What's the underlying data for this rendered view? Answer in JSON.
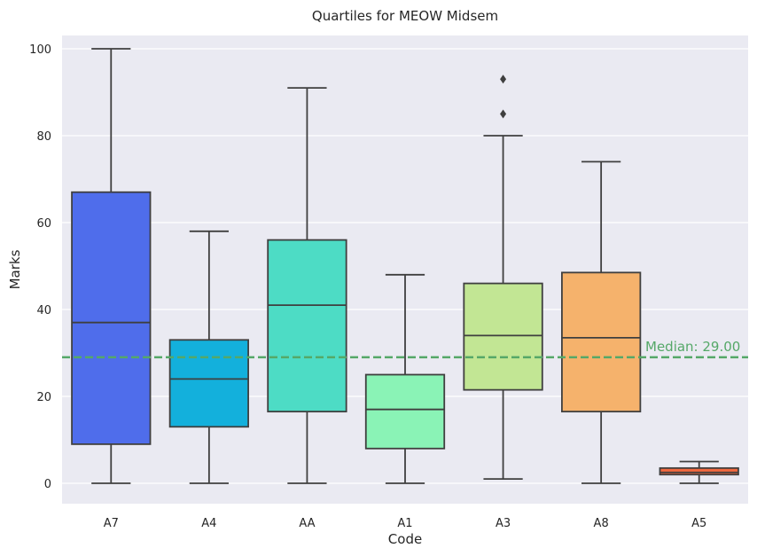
{
  "chart_data": {
    "type": "box",
    "title": "Quartiles for MEOW Midsem",
    "xlabel": "Code",
    "ylabel": "Marks",
    "ylim": [
      -5,
      105
    ],
    "yticks": [
      0,
      20,
      40,
      60,
      80,
      100
    ],
    "grid": true,
    "background": "#eaeaf2",
    "categories": [
      "A7",
      "A4",
      "AA",
      "A1",
      "A3",
      "A8",
      "A5"
    ],
    "boxes": [
      {
        "category": "A7",
        "min": 0,
        "q1": 9,
        "median": 37,
        "q3": 67,
        "max": 100,
        "outliers": [],
        "color": "#4f6deb"
      },
      {
        "category": "A4",
        "min": 0,
        "q1": 13,
        "median": 24,
        "q3": 33,
        "max": 58,
        "outliers": [],
        "color": "#13b0dc"
      },
      {
        "category": "AA",
        "min": 0,
        "q1": 16.5,
        "median": 41,
        "q3": 56,
        "max": 91,
        "outliers": [],
        "color": "#4ddcc5"
      },
      {
        "category": "A1",
        "min": 0,
        "q1": 8,
        "median": 17,
        "q3": 25,
        "max": 48,
        "outliers": [],
        "color": "#8af3b6"
      },
      {
        "category": "A3",
        "min": 1,
        "q1": 21.5,
        "median": 34,
        "q3": 46,
        "max": 80,
        "outliers": [
          85,
          93
        ],
        "color": "#c2e694"
      },
      {
        "category": "A8",
        "min": 0,
        "q1": 16.5,
        "median": 33.5,
        "q3": 48.5,
        "max": 74,
        "outliers": [],
        "color": "#f5b26c"
      },
      {
        "category": "A5",
        "min": 0,
        "q1": 2,
        "median": 2.5,
        "q3": 3.5,
        "max": 5,
        "outliers": [],
        "color": "#f3683f"
      }
    ],
    "reference_line": {
      "value": 29.0,
      "label": "Median: 29.00",
      "color": "#55a868",
      "style": "dashed"
    }
  }
}
